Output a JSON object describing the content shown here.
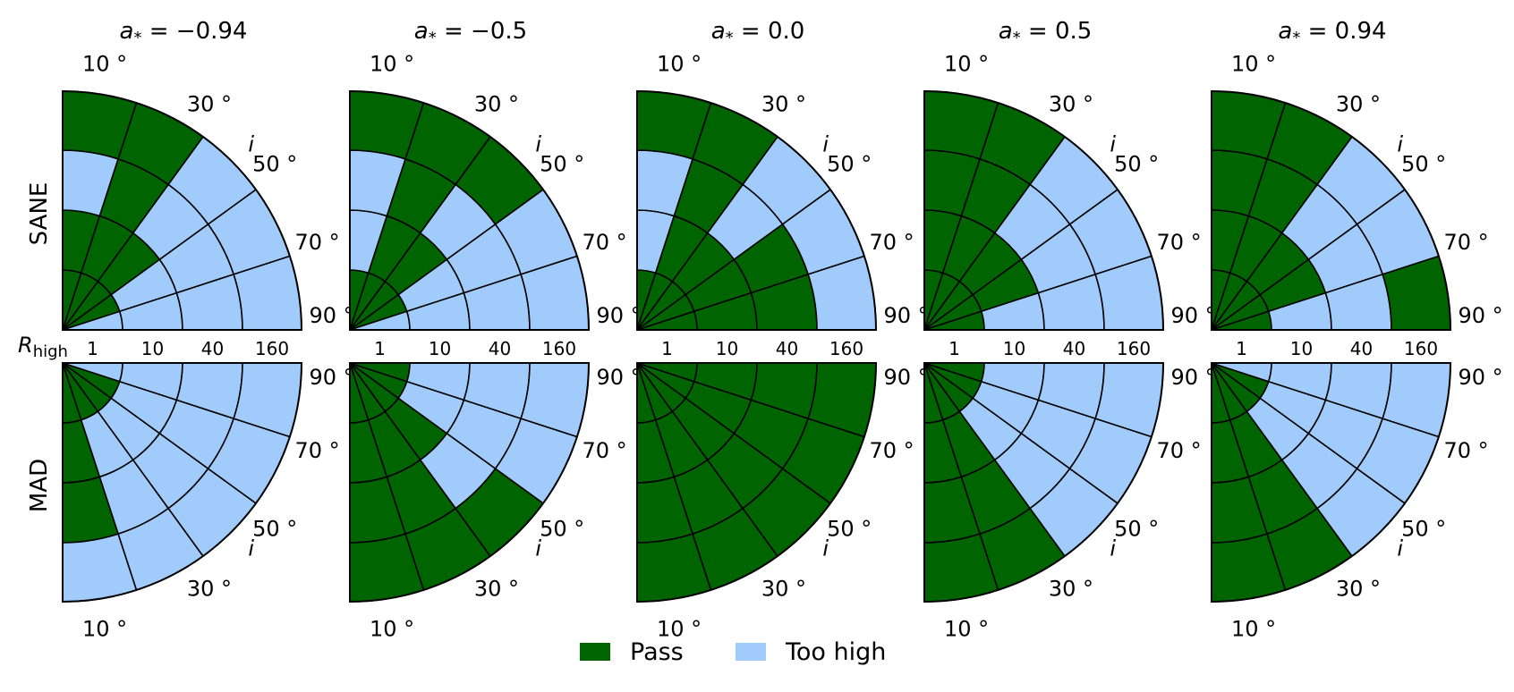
{
  "colors": {
    "pass": "#006400",
    "too_high": "#a0cbfa",
    "grid": "#000000"
  },
  "legend": [
    {
      "key": "pass",
      "label": "Pass"
    },
    {
      "key": "too_high",
      "label": "Too high"
    }
  ],
  "chart_data": {
    "type": "heatmap",
    "description_axes": "polar quadrant per panel: radius = R_high bin, angle = inclination i",
    "columns": [
      {
        "spin": -0.94,
        "title_math": "a",
        "title_sub": "*",
        "title_rest": " = −0.94"
      },
      {
        "spin": -0.5,
        "title_math": "a",
        "title_sub": "*",
        "title_rest": " = −0.5"
      },
      {
        "spin": 0.0,
        "title_math": "a",
        "title_sub": "*",
        "title_rest": " = 0.0"
      },
      {
        "spin": 0.5,
        "title_math": "a",
        "title_sub": "*",
        "title_rest": " = 0.5"
      },
      {
        "spin": 0.94,
        "title_math": "a",
        "title_sub": "*",
        "title_rest": " = 0.94"
      }
    ],
    "rows": [
      "SANE",
      "MAD"
    ],
    "radial_axis": {
      "label_main": "R",
      "label_sub": "high",
      "ticks": [
        "1",
        "10",
        "40",
        "160"
      ]
    },
    "angular_axis": {
      "label": "i",
      "ticks": [
        "10 °",
        "30 °",
        "50 °",
        "70 °",
        "90 °"
      ],
      "inclinations": [
        10,
        30,
        50,
        70,
        90
      ]
    },
    "cell_order_note": "values[row][col][r_index][i_index]; r order = 1,10,40,160; i order = 10,30,50,70,90; P = Pass, T = Too high",
    "values": [
      [
        [
          [
            "P",
            "P",
            "P",
            "P",
            "T"
          ],
          [
            "P",
            "P",
            "P",
            "T",
            "T"
          ],
          [
            "T",
            "P",
            "T",
            "T",
            "T"
          ],
          [
            "P",
            "P",
            "T",
            "T",
            "T"
          ]
        ],
        [
          [
            "P",
            "P",
            "P",
            "P",
            "T"
          ],
          [
            "T",
            "P",
            "P",
            "T",
            "T"
          ],
          [
            "T",
            "P",
            "T",
            "T",
            "T"
          ],
          [
            "P",
            "P",
            "P",
            "T",
            "T"
          ]
        ],
        [
          [
            "P",
            "P",
            "P",
            "P",
            "P"
          ],
          [
            "T",
            "P",
            "P",
            "P",
            "P"
          ],
          [
            "T",
            "P",
            "T",
            "P",
            "P"
          ],
          [
            "P",
            "P",
            "T",
            "T",
            "T"
          ]
        ],
        [
          [
            "P",
            "P",
            "P",
            "P",
            "P"
          ],
          [
            "P",
            "P",
            "P",
            "P",
            "T"
          ],
          [
            "P",
            "P",
            "T",
            "T",
            "T"
          ],
          [
            "P",
            "P",
            "T",
            "T",
            "T"
          ]
        ],
        [
          [
            "P",
            "P",
            "P",
            "P",
            "P"
          ],
          [
            "P",
            "P",
            "P",
            "P",
            "T"
          ],
          [
            "P",
            "P",
            "T",
            "T",
            "T"
          ],
          [
            "P",
            "P",
            "T",
            "T",
            "P"
          ]
        ]
      ],
      [
        [
          [
            "P",
            "P",
            "P",
            "P",
            "T"
          ],
          [
            "P",
            "T",
            "T",
            "T",
            "T"
          ],
          [
            "P",
            "T",
            "T",
            "T",
            "T"
          ],
          [
            "T",
            "T",
            "T",
            "T",
            "T"
          ]
        ],
        [
          [
            "P",
            "P",
            "P",
            "P",
            "P"
          ],
          [
            "P",
            "P",
            "P",
            "T",
            "T"
          ],
          [
            "P",
            "P",
            "T",
            "T",
            "T"
          ],
          [
            "P",
            "P",
            "P",
            "T",
            "T"
          ]
        ],
        [
          [
            "P",
            "P",
            "P",
            "P",
            "P"
          ],
          [
            "P",
            "P",
            "P",
            "P",
            "P"
          ],
          [
            "P",
            "P",
            "P",
            "P",
            "P"
          ],
          [
            "P",
            "P",
            "P",
            "P",
            "P"
          ]
        ],
        [
          [
            "P",
            "P",
            "P",
            "P",
            "P"
          ],
          [
            "P",
            "P",
            "T",
            "T",
            "T"
          ],
          [
            "P",
            "P",
            "T",
            "T",
            "T"
          ],
          [
            "P",
            "P",
            "T",
            "T",
            "T"
          ]
        ],
        [
          [
            "P",
            "P",
            "P",
            "P",
            "T"
          ],
          [
            "P",
            "P",
            "T",
            "T",
            "T"
          ],
          [
            "P",
            "P",
            "T",
            "T",
            "T"
          ],
          [
            "P",
            "P",
            "T",
            "T",
            "T"
          ]
        ]
      ]
    ]
  }
}
